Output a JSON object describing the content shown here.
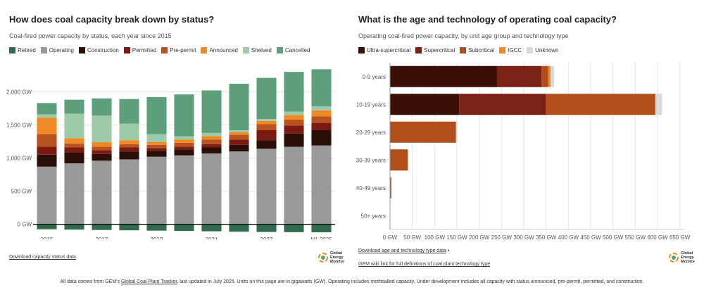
{
  "left": {
    "title": "How does coal capacity break down by status?",
    "subtitle": "Coal-fired power capacity by status, each year since 2015",
    "download_label": "Download capacity status data"
  },
  "right": {
    "title": "What is the age and technology of operating coal capacity?",
    "subtitle": "Operating coal-fired power capacity, by unit age group and technology type",
    "download_label": "Download age and technology type data",
    "bullet": "•",
    "wiki_label": "GEM wiki link for full definitions of coal plant technology type"
  },
  "logo": {
    "line1": "Global",
    "line2": "Energy",
    "line3": "Monitor"
  },
  "footer": {
    "before": "All data comes from GEM's ",
    "link": "Global Coal Plant Tracker",
    "after": ", last updated in July 2025. Units on this page are in gigawatts (GW). Operating includes mothballed capacity. Under development includes all capacity with status announced, pre-permit, permitted, and construction."
  },
  "chart_data": [
    {
      "type": "bar",
      "stacked": true,
      "title": "How does coal capacity break down by status?",
      "subtitle": "Coal-fired power capacity by status, each year since 2015",
      "categories": [
        "2015",
        "2016",
        "2017",
        "2018",
        "2019",
        "2020",
        "2021",
        "2022",
        "2023",
        "2024",
        "H1 2025"
      ],
      "x_tick_labels": [
        "2015",
        "",
        "2017",
        "",
        "2019",
        "",
        "2021",
        "",
        "2023",
        "",
        "H1 2025"
      ],
      "y_ticks": [
        0,
        500,
        1000,
        1500,
        2000
      ],
      "y_tick_labels": [
        "0 GW",
        "500 GW",
        "1,000 GW",
        "1,500 GW",
        "2,000 GW"
      ],
      "ylim": [
        -120,
        2450
      ],
      "legend_position": "top-left",
      "series": [
        {
          "name": "Retired",
          "color": "#2f6b4c",
          "values": [
            -75,
            -80,
            -85,
            -90,
            -95,
            -100,
            -105,
            -110,
            -115,
            -118,
            -120
          ]
        },
        {
          "name": "Operating",
          "color": "#999999",
          "values": [
            870,
            920,
            960,
            980,
            1020,
            1040,
            1070,
            1100,
            1140,
            1170,
            1190
          ]
        },
        {
          "name": "Construction",
          "color": "#2a0f08",
          "values": [
            180,
            160,
            100,
            120,
            90,
            90,
            90,
            100,
            130,
            200,
            230
          ]
        },
        {
          "name": "Permitted",
          "color": "#7a1a12",
          "values": [
            120,
            80,
            60,
            60,
            40,
            40,
            50,
            80,
            150,
            120,
            110
          ]
        },
        {
          "name": "Pre-permit",
          "color": "#b8531f",
          "values": [
            190,
            60,
            50,
            50,
            50,
            60,
            70,
            70,
            90,
            90,
            100
          ]
        },
        {
          "name": "Announced",
          "color": "#f08a24",
          "values": [
            250,
            80,
            70,
            60,
            40,
            50,
            50,
            40,
            50,
            70,
            90
          ]
        },
        {
          "name": "Shelved",
          "color": "#9dcaa8",
          "values": [
            50,
            370,
            400,
            250,
            120,
            50,
            50,
            30,
            30,
            50,
            60
          ]
        },
        {
          "name": "Cancelled",
          "color": "#5d9e7c",
          "values": [
            170,
            210,
            260,
            370,
            560,
            630,
            640,
            700,
            620,
            600,
            560
          ]
        }
      ]
    },
    {
      "type": "bar",
      "orientation": "horizontal",
      "stacked": true,
      "title": "What is the age and technology of operating coal capacity?",
      "subtitle": "Operating coal-fired power capacity, by unit age group and technology type",
      "categories": [
        "0-9 years",
        "10-19 years",
        "20-29 years",
        "30-39 years",
        "40-49 years",
        "50+ years"
      ],
      "x_ticks": [
        0,
        50,
        100,
        150,
        200,
        250,
        300,
        350,
        400,
        450,
        500,
        550,
        600,
        650
      ],
      "x_tick_labels": [
        "0 GW",
        "50 GW",
        "100 GW",
        "150 GW",
        "200 GW",
        "250 GW",
        "300 GW",
        "350 GW",
        "400 GW",
        "450 GW",
        "500 GW",
        "550 GW",
        "600 GW",
        "650 GW"
      ],
      "xlim": [
        0,
        660
      ],
      "legend_position": "top-left",
      "series": [
        {
          "name": "Ultra-supercritical",
          "color": "#3b0f08",
          "values": [
            240,
            155,
            0,
            0,
            0,
            0
          ]
        },
        {
          "name": "Supercritical",
          "color": "#7a2216",
          "values": [
            100,
            195,
            0,
            0,
            0,
            0
          ]
        },
        {
          "name": "Subcritical",
          "color": "#b24d1c",
          "values": [
            15,
            245,
            148,
            40,
            3,
            0
          ]
        },
        {
          "name": "IGCC",
          "color": "#f08a24",
          "values": [
            5,
            0,
            0,
            0,
            0,
            0
          ]
        },
        {
          "name": "Unknown",
          "color": "#d9d9d9",
          "values": [
            8,
            15,
            3,
            0,
            0,
            0
          ]
        }
      ]
    }
  ]
}
